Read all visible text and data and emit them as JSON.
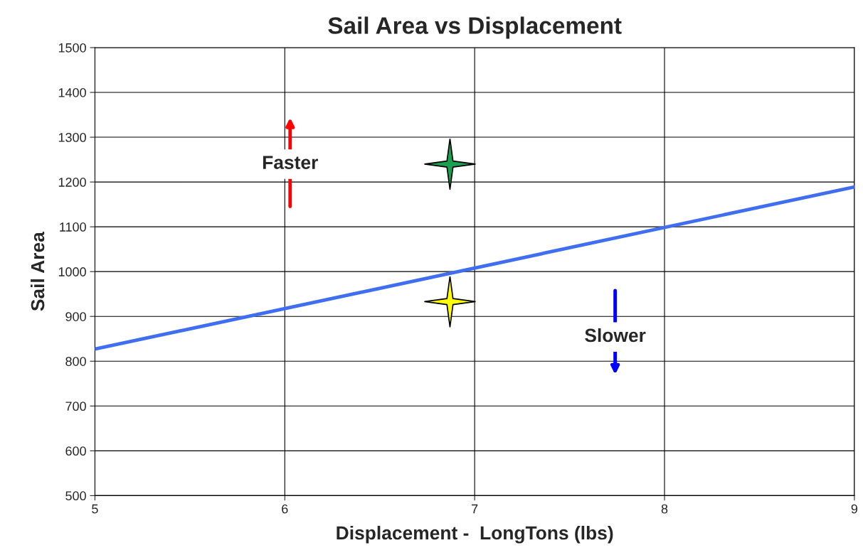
{
  "chart_data": {
    "type": "scatter",
    "title": "Sail Area vs Displacement",
    "xlabel": "Displacement -  LongTons (lbs)",
    "ylabel": "Sail Area",
    "xlim": [
      5,
      9
    ],
    "xticks": [
      5,
      6,
      7,
      8,
      9
    ],
    "ylim": [
      500,
      1500
    ],
    "yticks": [
      500,
      600,
      700,
      800,
      900,
      1000,
      1100,
      1200,
      1300,
      1400,
      1500
    ],
    "grid": true,
    "marker": "star",
    "series": [
      {
        "type": "line",
        "color": "#3f6ff0",
        "x": [
          5,
          9
        ],
        "values": [
          827,
          1189
        ],
        "marker": "none"
      },
      {
        "color": "#1aa050",
        "x": [
          6.87
        ],
        "values": [
          1240
        ]
      },
      {
        "color": "#ffff00",
        "x": [
          6.87
        ],
        "values": [
          933
        ]
      }
    ],
    "annotations": [
      "Faster",
      "Slower"
    ]
  }
}
